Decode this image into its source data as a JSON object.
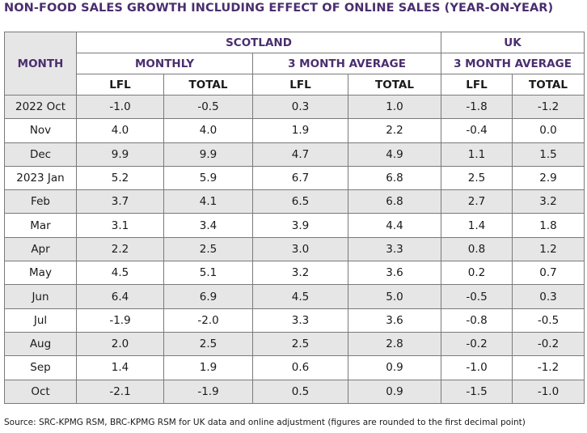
{
  "title": "NON-FOOD SALES GROWTH INCLUDING EFFECT OF ONLINE SALES (YEAR-ON-YEAR)",
  "headers": {
    "month": "MONTH",
    "scotland": "SCOTLAND",
    "uk": "UK",
    "monthly": "MONTHLY",
    "avg_scot": "3 MONTH AVERAGE",
    "avg_uk": "3 MONTH AVERAGE",
    "cols": [
      "LFL",
      "TOTAL",
      "LFL",
      "TOTAL",
      "LFL",
      "TOTAL"
    ]
  },
  "rows": [
    {
      "month": "2022 Oct",
      "v": [
        "-1.0",
        "-0.5",
        "0.3",
        "1.0",
        "-1.8",
        "-1.2"
      ]
    },
    {
      "month": "Nov",
      "v": [
        "4.0",
        "4.0",
        "1.9",
        "2.2",
        "-0.4",
        "0.0"
      ]
    },
    {
      "month": "Dec",
      "v": [
        "9.9",
        "9.9",
        "4.7",
        "4.9",
        "1.1",
        "1.5"
      ]
    },
    {
      "month": "2023 Jan",
      "v": [
        "5.2",
        "5.9",
        "6.7",
        "6.8",
        "2.5",
        "2.9"
      ]
    },
    {
      "month": "Feb",
      "v": [
        "3.7",
        "4.1",
        "6.5",
        "6.8",
        "2.7",
        "3.2"
      ]
    },
    {
      "month": "Mar",
      "v": [
        "3.1",
        "3.4",
        "3.9",
        "4.4",
        "1.4",
        "1.8"
      ]
    },
    {
      "month": "Apr",
      "v": [
        "2.2",
        "2.5",
        "3.0",
        "3.3",
        "0.8",
        "1.2"
      ]
    },
    {
      "month": "May",
      "v": [
        "4.5",
        "5.1",
        "3.2",
        "3.6",
        "0.2",
        "0.7"
      ]
    },
    {
      "month": "Jun",
      "v": [
        "6.4",
        "6.9",
        "4.5",
        "5.0",
        "-0.5",
        "0.3"
      ]
    },
    {
      "month": "Jul",
      "v": [
        "-1.9",
        "-2.0",
        "3.3",
        "3.6",
        "-0.8",
        "-0.5"
      ]
    },
    {
      "month": "Aug",
      "v": [
        "2.0",
        "2.5",
        "2.5",
        "2.8",
        "-0.2",
        "-0.2"
      ]
    },
    {
      "month": "Sep",
      "v": [
        "1.4",
        "1.9",
        "0.6",
        "0.9",
        "-1.0",
        "-1.2"
      ]
    },
    {
      "month": "Oct",
      "v": [
        "-2.1",
        "-1.9",
        "0.5",
        "0.9",
        "-1.5",
        "-1.0"
      ]
    }
  ],
  "source": "Source: SRC-KPMG RSM, BRC-KPMG RSM for UK data and online adjustment (figures are rounded to the first decimal point)"
}
